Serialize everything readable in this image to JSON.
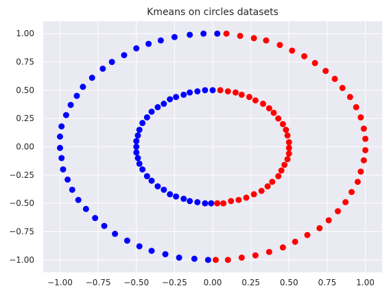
{
  "chart_data": {
    "type": "scatter",
    "title": "Kmeans on circles datasets",
    "xlabel": "",
    "ylabel": "",
    "xlim": [
      -1.11,
      1.11
    ],
    "ylim": [
      -1.11,
      1.11
    ],
    "xticks": [
      -1.0,
      -0.75,
      -0.5,
      -0.25,
      0.0,
      0.25,
      0.5,
      0.75,
      1.0
    ],
    "xtick_labels": [
      "−1.00",
      "−0.75",
      "−0.50",
      "−0.25",
      "0.00",
      "0.25",
      "0.50",
      "0.75",
      "1.00"
    ],
    "yticks": [
      -1.0,
      -0.75,
      -0.5,
      -0.25,
      0.0,
      0.25,
      0.5,
      0.75,
      1.0
    ],
    "ytick_labels": [
      "−1.00",
      "−0.75",
      "−0.50",
      "−0.25",
      "0.00",
      "0.25",
      "0.50",
      "0.75",
      "1.00"
    ],
    "grid": true,
    "background": "#eaeaf2",
    "series": [
      {
        "color": "#0000ff",
        "points": [
          [
            0.03,
            1.0
          ],
          [
            -0.06,
            1.0
          ],
          [
            -0.15,
            0.99
          ],
          [
            -0.25,
            0.97
          ],
          [
            -0.34,
            0.94
          ],
          [
            -0.42,
            0.91
          ],
          [
            -0.5,
            0.87
          ],
          [
            -0.58,
            0.81
          ],
          [
            -0.66,
            0.75
          ],
          [
            -0.72,
            0.69
          ],
          [
            -0.79,
            0.61
          ],
          [
            -0.85,
            0.53
          ],
          [
            -0.89,
            0.45
          ],
          [
            -0.93,
            0.37
          ],
          [
            -0.96,
            0.28
          ],
          [
            -0.99,
            0.18
          ],
          [
            -1.0,
            0.09
          ],
          [
            -1.0,
            -0.01
          ],
          [
            -0.99,
            -0.1
          ],
          [
            -0.98,
            -0.2
          ],
          [
            -0.95,
            -0.29
          ],
          [
            -0.92,
            -0.38
          ],
          [
            -0.88,
            -0.47
          ],
          [
            -0.83,
            -0.55
          ],
          [
            -0.77,
            -0.63
          ],
          [
            -0.71,
            -0.7
          ],
          [
            -0.64,
            -0.77
          ],
          [
            -0.56,
            -0.83
          ],
          [
            -0.48,
            -0.88
          ],
          [
            -0.4,
            -0.92
          ],
          [
            -0.31,
            -0.95
          ],
          [
            -0.22,
            -0.98
          ],
          [
            -0.12,
            -0.99
          ],
          [
            -0.03,
            -1.0
          ],
          [
            0.0,
            0.5
          ],
          [
            -0.05,
            0.5
          ],
          [
            -0.1,
            0.49
          ],
          [
            -0.15,
            0.48
          ],
          [
            -0.19,
            0.46
          ],
          [
            -0.24,
            0.44
          ],
          [
            -0.28,
            0.42
          ],
          [
            -0.32,
            0.38
          ],
          [
            -0.36,
            0.35
          ],
          [
            -0.4,
            0.31
          ],
          [
            -0.43,
            0.26
          ],
          [
            -0.46,
            0.21
          ],
          [
            -0.48,
            0.15
          ],
          [
            -0.49,
            0.1
          ],
          [
            -0.5,
            0.05
          ],
          [
            -0.5,
            0.0
          ],
          [
            -0.5,
            -0.05
          ],
          [
            -0.49,
            -0.1
          ],
          [
            -0.48,
            -0.15
          ],
          [
            -0.46,
            -0.2
          ],
          [
            -0.43,
            -0.26
          ],
          [
            -0.4,
            -0.3
          ],
          [
            -0.36,
            -0.35
          ],
          [
            -0.32,
            -0.38
          ],
          [
            -0.28,
            -0.42
          ],
          [
            -0.24,
            -0.44
          ],
          [
            -0.19,
            -0.46
          ],
          [
            -0.15,
            -0.48
          ],
          [
            -0.1,
            -0.49
          ],
          [
            -0.05,
            -0.5
          ],
          [
            -0.01,
            -0.5
          ]
        ]
      },
      {
        "color": "#ff0000",
        "points": [
          [
            0.09,
            1.0
          ],
          [
            0.18,
            0.98
          ],
          [
            0.27,
            0.96
          ],
          [
            0.35,
            0.94
          ],
          [
            0.44,
            0.9
          ],
          [
            0.52,
            0.85
          ],
          [
            0.6,
            0.8
          ],
          [
            0.67,
            0.74
          ],
          [
            0.74,
            0.67
          ],
          [
            0.8,
            0.6
          ],
          [
            0.85,
            0.52
          ],
          [
            0.9,
            0.44
          ],
          [
            0.94,
            0.35
          ],
          [
            0.97,
            0.26
          ],
          [
            0.99,
            0.16
          ],
          [
            1.0,
            0.07
          ],
          [
            1.0,
            -0.03
          ],
          [
            0.99,
            -0.12
          ],
          [
            0.97,
            -0.22
          ],
          [
            0.95,
            -0.31
          ],
          [
            0.91,
            -0.4
          ],
          [
            0.87,
            -0.49
          ],
          [
            0.82,
            -0.57
          ],
          [
            0.76,
            -0.65
          ],
          [
            0.7,
            -0.72
          ],
          [
            0.62,
            -0.78
          ],
          [
            0.54,
            -0.84
          ],
          [
            0.46,
            -0.89
          ],
          [
            0.37,
            -0.93
          ],
          [
            0.28,
            -0.96
          ],
          [
            0.19,
            -0.98
          ],
          [
            0.1,
            -1.0
          ],
          [
            0.02,
            -1.0
          ],
          [
            0.05,
            0.5
          ],
          [
            0.1,
            0.49
          ],
          [
            0.15,
            0.48
          ],
          [
            0.19,
            0.46
          ],
          [
            0.24,
            0.44
          ],
          [
            0.28,
            0.41
          ],
          [
            0.33,
            0.38
          ],
          [
            0.37,
            0.34
          ],
          [
            0.4,
            0.3
          ],
          [
            0.43,
            0.25
          ],
          [
            0.46,
            0.2
          ],
          [
            0.48,
            0.15
          ],
          [
            0.49,
            0.1
          ],
          [
            0.5,
            0.04
          ],
          [
            0.5,
            -0.01
          ],
          [
            0.5,
            -0.06
          ],
          [
            0.49,
            -0.11
          ],
          [
            0.47,
            -0.16
          ],
          [
            0.45,
            -0.21
          ],
          [
            0.43,
            -0.26
          ],
          [
            0.39,
            -0.31
          ],
          [
            0.36,
            -0.35
          ],
          [
            0.32,
            -0.39
          ],
          [
            0.27,
            -0.42
          ],
          [
            0.22,
            -0.45
          ],
          [
            0.17,
            -0.47
          ],
          [
            0.12,
            -0.48
          ],
          [
            0.07,
            -0.5
          ],
          [
            0.03,
            -0.5
          ]
        ]
      }
    ]
  }
}
